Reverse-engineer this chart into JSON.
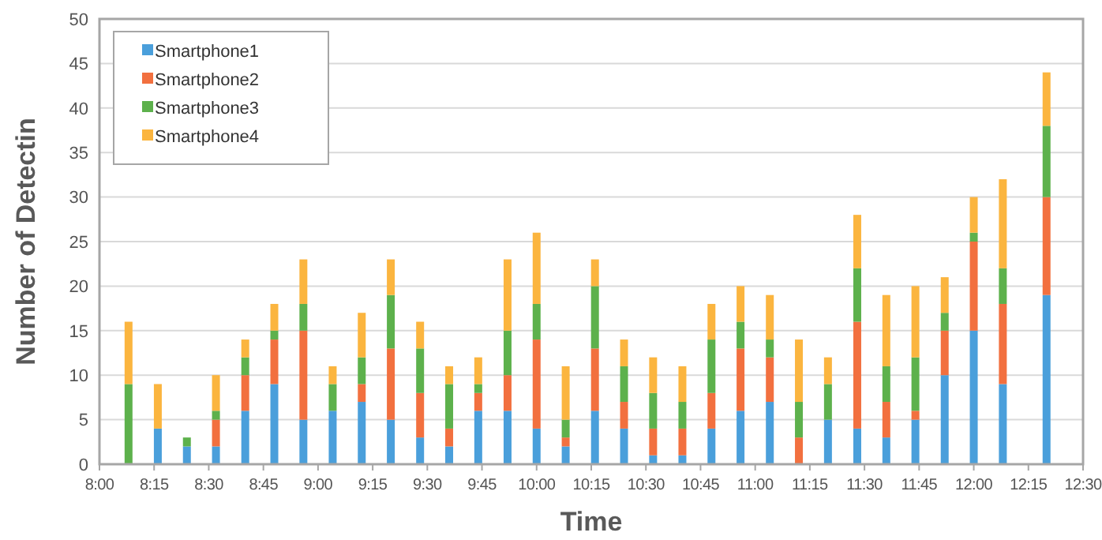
{
  "chart_data": {
    "type": "bar",
    "stacked": true,
    "xlabel": "Time",
    "ylabel": "Number of Detectin",
    "x": [
      8.133,
      8.267,
      8.4,
      8.533,
      8.667,
      8.8,
      8.933,
      9.067,
      9.2,
      9.333,
      9.467,
      9.6,
      9.733,
      9.867,
      10,
      10.133,
      10.267,
      10.4,
      10.533,
      10.667,
      10.8,
      10.933,
      11.067,
      11.2,
      11.333,
      11.467,
      11.6,
      11.733,
      11.867,
      12,
      12.133,
      12.333
    ],
    "series": [
      {
        "name": "Smartphone1",
        "color": "#4a9fdb",
        "values": [
          0,
          4,
          2,
          2,
          6,
          9,
          5,
          6,
          7,
          5,
          3,
          2,
          6,
          6,
          4,
          2,
          6,
          4,
          1,
          1,
          4,
          6,
          7,
          0,
          5,
          4,
          3,
          5,
          10,
          15,
          9,
          19
        ]
      },
      {
        "name": "Smartphone2",
        "color": "#f2703f",
        "values": [
          0,
          0,
          0,
          3,
          4,
          5,
          10,
          0,
          2,
          8,
          5,
          2,
          2,
          4,
          10,
          1,
          7,
          3,
          3,
          3,
          4,
          7,
          5,
          3,
          0,
          12,
          4,
          1,
          5,
          10,
          9,
          11
        ]
      },
      {
        "name": "Smartphone3",
        "color": "#5db14c",
        "values": [
          9,
          0,
          1,
          1,
          2,
          1,
          3,
          3,
          3,
          6,
          5,
          5,
          1,
          5,
          4,
          2,
          7,
          4,
          4,
          3,
          6,
          3,
          2,
          4,
          4,
          6,
          4,
          6,
          2,
          1,
          4,
          8
        ]
      },
      {
        "name": "Smartphone4",
        "color": "#fbb53f",
        "values": [
          7,
          5,
          0,
          4,
          2,
          3,
          5,
          2,
          5,
          4,
          3,
          2,
          3,
          8,
          8,
          6,
          3,
          3,
          4,
          4,
          4,
          4,
          5,
          7,
          3,
          6,
          8,
          8,
          4,
          4,
          10,
          6
        ]
      }
    ],
    "xlim": [
      8,
      12.5
    ],
    "xticks": [
      {
        "value": 8,
        "label": "8:00"
      },
      {
        "value": 8.25,
        "label": "8:15"
      },
      {
        "value": 8.5,
        "label": "8:30"
      },
      {
        "value": 8.75,
        "label": "8:45"
      },
      {
        "value": 9,
        "label": "9:00"
      },
      {
        "value": 9.25,
        "label": "9:15"
      },
      {
        "value": 9.5,
        "label": "9:30"
      },
      {
        "value": 9.75,
        "label": "9:45"
      },
      {
        "value": 10,
        "label": "10:00"
      },
      {
        "value": 10.25,
        "label": "10:15"
      },
      {
        "value": 10.5,
        "label": "10:30"
      },
      {
        "value": 10.75,
        "label": "10:45"
      },
      {
        "value": 11,
        "label": "11:00"
      },
      {
        "value": 11.25,
        "label": "11:15"
      },
      {
        "value": 11.5,
        "label": "11:30"
      },
      {
        "value": 11.75,
        "label": "11:45"
      },
      {
        "value": 12,
        "label": "12:00"
      },
      {
        "value": 12.25,
        "label": "12:15"
      },
      {
        "value": 12.5,
        "label": "12:30"
      }
    ],
    "ylim": [
      0,
      50
    ],
    "yticks": [
      0,
      5,
      10,
      15,
      20,
      25,
      30,
      35,
      40,
      45,
      50
    ],
    "grid": "y",
    "legend": "top left"
  }
}
